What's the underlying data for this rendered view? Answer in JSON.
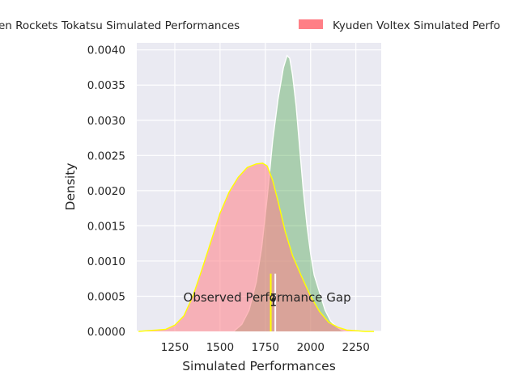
{
  "chart_data": {
    "type": "area",
    "xlabel": "Simulated Performances",
    "ylabel": "Density",
    "xlim": [
      1040,
      2390
    ],
    "ylim": [
      0,
      0.0041
    ],
    "x_ticks": [
      1250,
      1500,
      1750,
      2000,
      2250
    ],
    "x_tick_labels": [
      "1250",
      "1500",
      "1750",
      "2000",
      "2250"
    ],
    "y_ticks": [
      0.0,
      0.0005,
      0.001,
      0.0015,
      0.002,
      0.0025,
      0.003,
      0.0035,
      0.004
    ],
    "y_tick_labels": [
      "0.0000",
      "0.0005",
      "0.0010",
      "0.0015",
      "0.0020",
      "0.0025",
      "0.0030",
      "0.0035",
      "0.0040"
    ],
    "grid": true,
    "legend_position": "top, outside, clipped",
    "series": [
      {
        "name": "Chiba Jetsen Rockets Tokatsu Simulated Performances",
        "legend_label": "en Rockets Tokatsu Simulated Performances",
        "fill_color": "#4ca64c",
        "fill_opacity": 0.4,
        "line_color": "#ffffff",
        "x": [
          1575,
          1620,
          1660,
          1700,
          1730,
          1760,
          1790,
          1820,
          1850,
          1870,
          1885,
          1900,
          1920,
          1940,
          1960,
          1980,
          2000,
          2020,
          2050,
          2080,
          2110,
          2140,
          2170,
          2200
        ],
        "y": [
          0.0,
          0.0001,
          0.0003,
          0.0007,
          0.0012,
          0.0019,
          0.0027,
          0.0033,
          0.00375,
          0.00392,
          0.00388,
          0.00365,
          0.0032,
          0.0026,
          0.002,
          0.0015,
          0.0011,
          0.0008,
          0.00055,
          0.0003,
          0.00015,
          7e-05,
          2e-05,
          0.0
        ]
      },
      {
        "name": "Kyuden Voltex Simulated Performances",
        "legend_label": "Kyuden Voltex Simulated Perfo",
        "fill_color": "#ff7f86",
        "fill_opacity": 0.55,
        "line_color": "#ffff00",
        "x": [
          1050,
          1100,
          1150,
          1200,
          1250,
          1300,
          1350,
          1400,
          1450,
          1500,
          1550,
          1600,
          1650,
          1700,
          1735,
          1760,
          1790,
          1820,
          1860,
          1900,
          1950,
          2000,
          2050,
          2100,
          2150,
          2200,
          2250,
          2300,
          2350
        ],
        "y": [
          0.0,
          1e-05,
          2e-05,
          3e-05,
          9e-05,
          0.00022,
          0.0005,
          0.00088,
          0.00128,
          0.00168,
          0.00198,
          0.00219,
          0.00233,
          0.00238,
          0.00239,
          0.00235,
          0.00215,
          0.00185,
          0.00142,
          0.00108,
          0.00078,
          0.0005,
          0.00028,
          0.00013,
          6e-05,
          2e-05,
          1e-05,
          0.0,
          0.0
        ]
      }
    ],
    "vlines": [
      {
        "x": 1780,
        "y_top": 0.00082,
        "color": "#ffff00"
      },
      {
        "x": 1805,
        "y_top": 0.00082,
        "color": "#ffffff"
      }
    ],
    "gap_marker": {
      "x": 1795,
      "y": 0.00045,
      "y_err": 8e-05,
      "color": "#262626"
    },
    "annotation": {
      "text": "Observed Performance Gap",
      "x": 1760,
      "y": 0.00048
    }
  }
}
